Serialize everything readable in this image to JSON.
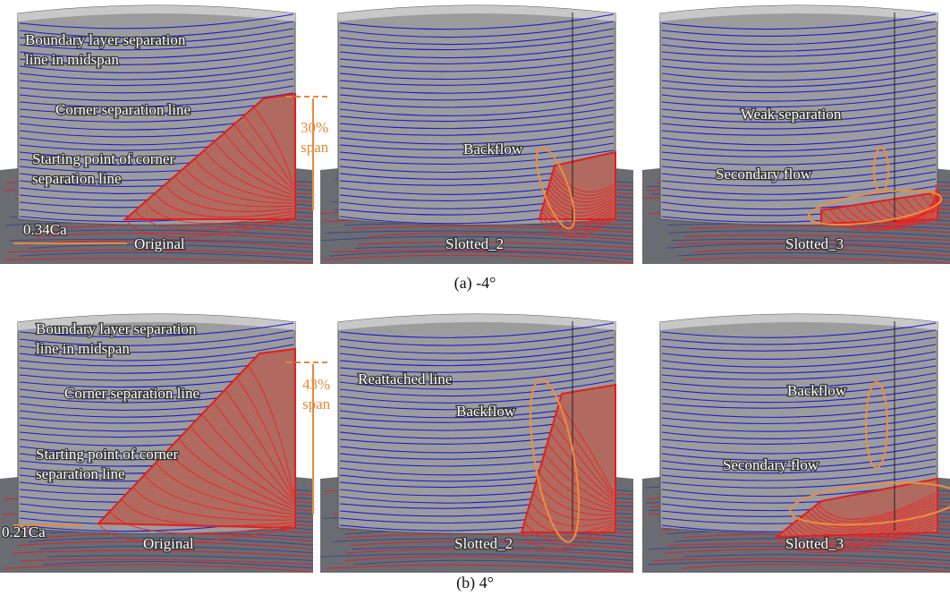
{
  "rows": [
    {
      "caption": "(a) -4°",
      "panels": [
        {
          "label": "Original",
          "notes": [
            [
              "Boundary layer separation",
              "line in midspan"
            ],
            [
              "Corner separation line"
            ],
            [
              "Starting point of corner",
              "separation line"
            ],
            [
              "0.34Ca"
            ],
            [
              "30%",
              "span"
            ]
          ]
        },
        {
          "label": "Slotted_2",
          "notes": [
            [
              "Backflow"
            ]
          ]
        },
        {
          "label": "Slotted_3",
          "notes": [
            [
              "Weak separation"
            ],
            [
              "Secondary flow"
            ]
          ]
        }
      ]
    },
    {
      "caption": "(b) 4°",
      "panels": [
        {
          "label": "Original",
          "notes": [
            [
              "Boundary layer separation",
              "line in midspan"
            ],
            [
              "Corner separation line"
            ],
            [
              "Starting point of corner",
              "separation line"
            ],
            [
              "0.21Ca"
            ],
            [
              "43%",
              "span"
            ]
          ]
        },
        {
          "label": "Slotted_2",
          "notes": [
            [
              "Reattached line"
            ],
            [
              "Backflow"
            ]
          ]
        },
        {
          "label": "Slotted_3",
          "notes": [
            [
              "Backflow"
            ],
            [
              "Secondary flow"
            ]
          ]
        }
      ]
    }
  ]
}
